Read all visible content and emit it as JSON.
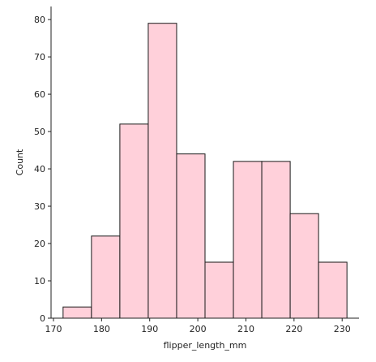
{
  "chart_data": {
    "type": "bar",
    "xlabel": "flipper_length_mm",
    "ylabel": "Count",
    "xlim": [
      169.5,
      233.5
    ],
    "ylim": [
      0,
      83.5
    ],
    "x_ticks": [
      170,
      180,
      190,
      200,
      210,
      220,
      230
    ],
    "y_ticks": [
      0,
      10,
      20,
      30,
      40,
      50,
      60,
      70,
      80
    ],
    "bins": [
      {
        "x0": 172.0,
        "x1": 177.9,
        "count": 3
      },
      {
        "x0": 177.9,
        "x1": 183.8,
        "count": 22
      },
      {
        "x0": 183.8,
        "x1": 189.7,
        "count": 52
      },
      {
        "x0": 189.7,
        "x1": 195.6,
        "count": 79
      },
      {
        "x0": 195.6,
        "x1": 201.5,
        "count": 44
      },
      {
        "x0": 201.5,
        "x1": 207.4,
        "count": 15
      },
      {
        "x0": 207.4,
        "x1": 213.3,
        "count": 42
      },
      {
        "x0": 213.3,
        "x1": 219.2,
        "count": 42
      },
      {
        "x0": 219.2,
        "x1": 225.1,
        "count": 28
      },
      {
        "x0": 225.1,
        "x1": 231.0,
        "count": 15
      }
    ],
    "bar_color": "#ffd0da",
    "edge_color": "#1a1a1a",
    "grid": false
  }
}
